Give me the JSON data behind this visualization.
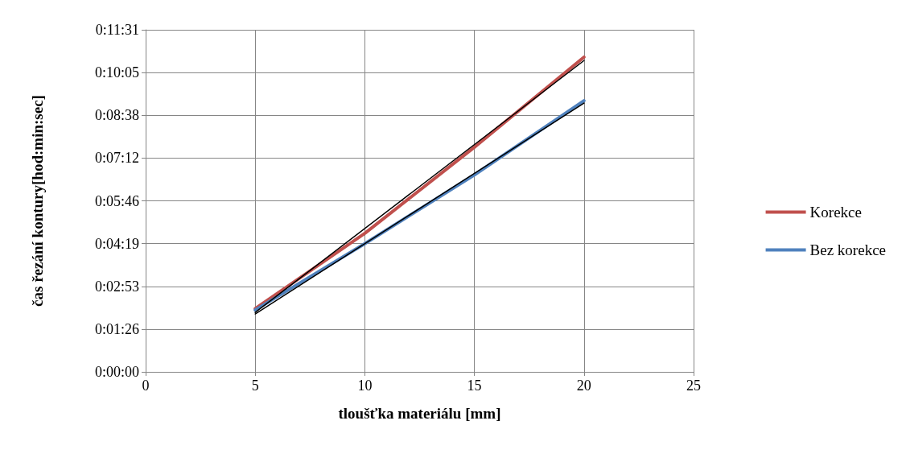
{
  "chart_data": {
    "type": "line",
    "xlabel": "tloušťka materiálu [mm]",
    "ylabel": "čas řezání kontury[hod:min:sec]",
    "x": [
      5,
      10,
      15,
      20
    ],
    "series": [
      {
        "name": "Korekce",
        "color": "#c0504d",
        "values": [
          128,
          280,
          454,
          636
        ]
      },
      {
        "name": "Bez korekce",
        "color": "#4f81bd",
        "values": [
          125,
          259,
          398,
          548
        ]
      },
      {
        "type": "line",
        "color": "#000000",
        "values": [
          120,
          null,
          null,
          629
        ]
      },
      {
        "type": "line",
        "color": "#000000",
        "values": [
          117,
          null,
          null,
          543
        ]
      }
    ],
    "xlim": [
      0,
      25
    ],
    "xticks": [
      0,
      5,
      10,
      15,
      20,
      25
    ],
    "ylim": [
      0,
      691.2
    ],
    "yticks": [
      {
        "value": 0,
        "label": "0:00:00"
      },
      {
        "value": 86.4,
        "label": "0:01:26"
      },
      {
        "value": 172.8,
        "label": "0:02:53"
      },
      {
        "value": 259.2,
        "label": "0:04:19"
      },
      {
        "value": 345.6,
        "label": "0:05:46"
      },
      {
        "value": 432,
        "label": "0:07:12"
      },
      {
        "value": 518.4,
        "label": "0:08:38"
      },
      {
        "value": 604.8,
        "label": "0:10:05"
      },
      {
        "value": 691.2,
        "label": "0:11:31"
      }
    ],
    "grid": true,
    "legend": "right",
    "marker": "none"
  }
}
